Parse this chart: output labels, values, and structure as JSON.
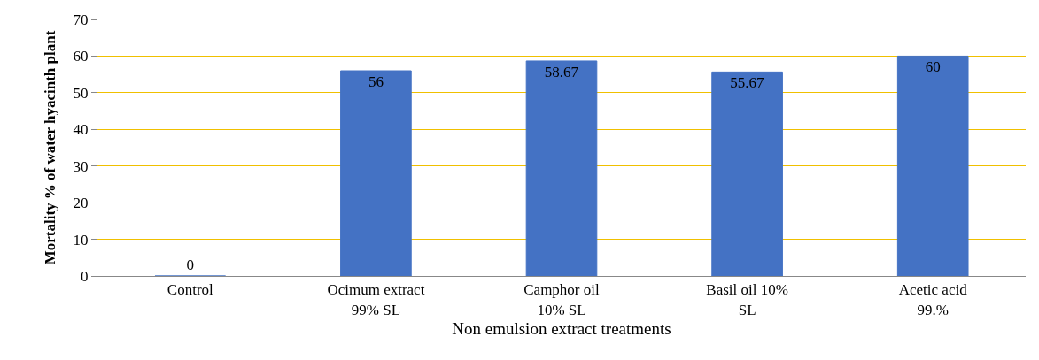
{
  "chart_data": {
    "type": "bar",
    "xlabel": "Non emulsion extract treatments",
    "ylabel": "Mortality % of water hyacinth plant",
    "categories": [
      "Control",
      "Ocimum extract 99% SL",
      "Camphor oil 10% SL",
      "Basil oil 10% SL",
      "Acetic acid 99.%"
    ],
    "values": [
      0,
      56,
      58.67,
      55.67,
      60
    ],
    "color": "#4472c4",
    "ylim": [
      0,
      70
    ],
    "yticks": [
      0,
      10,
      20,
      30,
      40,
      50,
      60,
      70
    ],
    "grid": "y",
    "data_labels": true,
    "legend": false
  }
}
